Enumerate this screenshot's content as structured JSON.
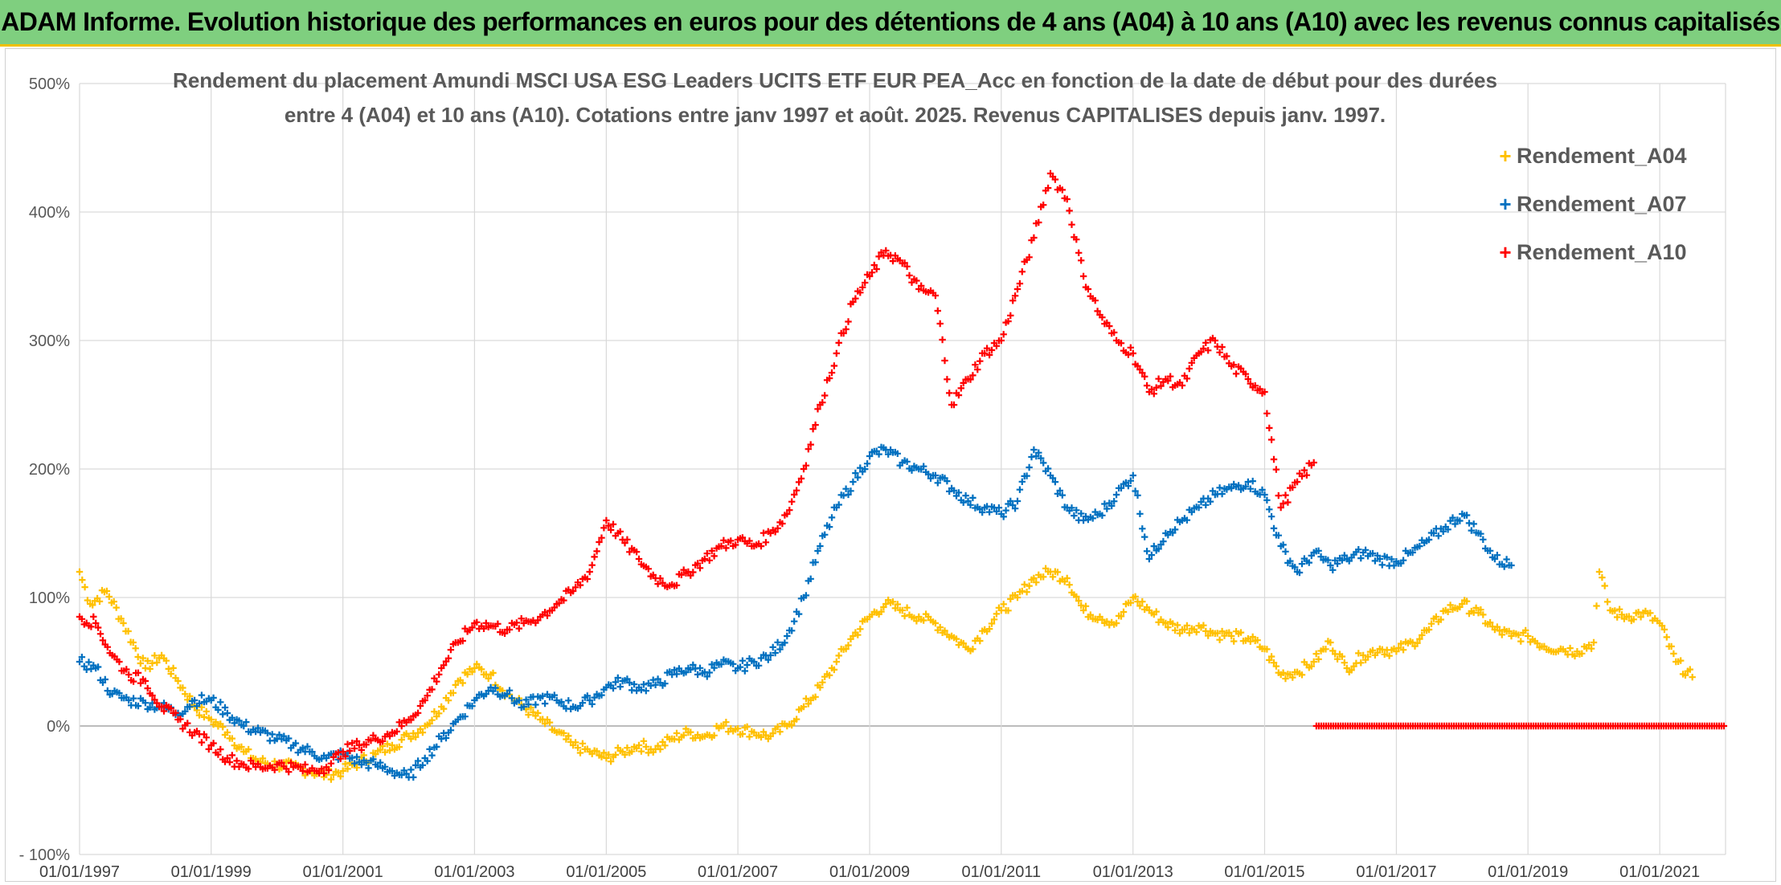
{
  "banner": {
    "title": "ADAM Informe. Evolution historique des performances en euros pour des détentions de 4 ans (A04) à 10 ans (A10) avec les revenus connus capitalisés"
  },
  "colors": {
    "banner_bg": "#7fcf7f",
    "banner_border": "#f0c000",
    "A04": "#ffc000",
    "A07": "#0070c0",
    "A10": "#ff0000",
    "grid": "#d9d9d9"
  },
  "chart_data": {
    "type": "scatter",
    "marker": "plus",
    "title_lines": [
      "Rendement du placement Amundi MSCI USA ESG Leaders UCITS ETF EUR PEA_Acc en fonction de la date de début pour des durées",
      "entre 4 (A04) et 10 ans (A10). Cotations entre janv 1997 et août. 2025. Revenus CAPITALISES depuis janv. 1997."
    ],
    "xlabel": "",
    "ylabel": "",
    "grid": true,
    "legend_position": "right",
    "x_ticks": [
      "01/01/1997",
      "01/01/1999",
      "01/01/2001",
      "01/01/2003",
      "01/01/2005",
      "01/01/2007",
      "01/01/2009",
      "01/01/2011",
      "01/01/2013",
      "01/01/2015",
      "01/01/2017",
      "01/01/2019",
      "01/01/2021"
    ],
    "xlim": [
      "1997-01-01",
      "2022-01-01"
    ],
    "y_ticks": [
      "- 100%",
      "0%",
      "100%",
      "200%",
      "300%",
      "400%",
      "500%"
    ],
    "ylim": [
      -100,
      500
    ],
    "y_unit": "%",
    "series": [
      {
        "name": "Rendement_A04",
        "color": "#ffc000",
        "points": [
          [
            "1997-01-01",
            120
          ],
          [
            "1997-03-01",
            95
          ],
          [
            "1997-06-01",
            105
          ],
          [
            "1997-09-01",
            80
          ],
          [
            "1998-01-01",
            45
          ],
          [
            "1998-04-01",
            55
          ],
          [
            "1998-07-01",
            35
          ],
          [
            "1998-10-01",
            15
          ],
          [
            "1999-01-01",
            5
          ],
          [
            "1999-04-01",
            -5
          ],
          [
            "1999-07-01",
            -20
          ],
          [
            "1999-10-01",
            -28
          ],
          [
            "2000-01-01",
            -30
          ],
          [
            "2000-04-01",
            -32
          ],
          [
            "2000-07-01",
            -35
          ],
          [
            "2000-10-01",
            -38
          ],
          [
            "2001-01-01",
            -35
          ],
          [
            "2001-04-01",
            -28
          ],
          [
            "2001-07-01",
            -22
          ],
          [
            "2001-10-01",
            -15
          ],
          [
            "2002-01-01",
            -8
          ],
          [
            "2002-04-01",
            0
          ],
          [
            "2002-07-01",
            15
          ],
          [
            "2002-10-01",
            35
          ],
          [
            "2003-01-01",
            45
          ],
          [
            "2003-04-01",
            40
          ],
          [
            "2003-07-01",
            25
          ],
          [
            "2003-10-01",
            15
          ],
          [
            "2004-01-01",
            5
          ],
          [
            "2004-04-01",
            -5
          ],
          [
            "2004-07-01",
            -15
          ],
          [
            "2004-10-01",
            -20
          ],
          [
            "2005-01-01",
            -25
          ],
          [
            "2005-04-01",
            -20
          ],
          [
            "2005-07-01",
            -15
          ],
          [
            "2005-10-01",
            -18
          ],
          [
            "2006-01-01",
            -10
          ],
          [
            "2006-04-01",
            -5
          ],
          [
            "2006-07-01",
            -8
          ],
          [
            "2006-10-01",
            0
          ],
          [
            "2007-01-01",
            -2
          ],
          [
            "2007-04-01",
            -5
          ],
          [
            "2007-07-01",
            -8
          ],
          [
            "2007-10-01",
            0
          ],
          [
            "2008-01-01",
            15
          ],
          [
            "2008-04-01",
            30
          ],
          [
            "2008-07-01",
            50
          ],
          [
            "2008-10-01",
            70
          ],
          [
            "2009-01-01",
            85
          ],
          [
            "2009-04-01",
            95
          ],
          [
            "2009-07-01",
            90
          ],
          [
            "2009-10-01",
            85
          ],
          [
            "2010-01-01",
            80
          ],
          [
            "2010-04-01",
            70
          ],
          [
            "2010-07-01",
            60
          ],
          [
            "2010-10-01",
            75
          ],
          [
            "2011-01-01",
            90
          ],
          [
            "2011-04-01",
            100
          ],
          [
            "2011-07-01",
            115
          ],
          [
            "2011-10-01",
            120
          ],
          [
            "2012-01-01",
            115
          ],
          [
            "2012-04-01",
            90
          ],
          [
            "2012-07-01",
            85
          ],
          [
            "2012-10-01",
            80
          ],
          [
            "2013-01-01",
            100
          ],
          [
            "2013-04-01",
            90
          ],
          [
            "2013-07-01",
            80
          ],
          [
            "2013-10-01",
            75
          ],
          [
            "2014-01-01",
            78
          ],
          [
            "2014-04-01",
            72
          ],
          [
            "2014-07-01",
            70
          ],
          [
            "2014-10-01",
            68
          ],
          [
            "2015-01-01",
            60
          ],
          [
            "2015-04-01",
            40
          ],
          [
            "2015-07-01",
            42
          ],
          [
            "2015-10-01",
            50
          ],
          [
            "2016-01-01",
            65
          ],
          [
            "2016-04-01",
            45
          ],
          [
            "2016-07-01",
            55
          ],
          [
            "2016-10-01",
            60
          ],
          [
            "2017-01-01",
            58
          ],
          [
            "2017-04-01",
            65
          ],
          [
            "2017-07-01",
            75
          ],
          [
            "2017-10-01",
            90
          ],
          [
            "2018-01-01",
            95
          ],
          [
            "2018-04-01",
            88
          ],
          [
            "2018-07-01",
            75
          ],
          [
            "2018-10-01",
            70
          ],
          [
            "2019-01-01",
            70
          ],
          [
            "2019-04-01",
            62
          ],
          [
            "2019-07-01",
            60
          ],
          [
            "2019-10-01",
            58
          ],
          [
            "2020-01-01",
            65
          ],
          [
            "2020-02-01",
            120
          ],
          [
            "2020-04-01",
            90
          ],
          [
            "2020-07-01",
            85
          ],
          [
            "2020-10-01",
            88
          ],
          [
            "2021-01-01",
            80
          ],
          [
            "2021-04-01",
            50
          ],
          [
            "2021-07-01",
            38
          ]
        ]
      },
      {
        "name": "Rendement_A07",
        "color": "#0070c0",
        "points": [
          [
            "1997-01-01",
            50
          ],
          [
            "1997-04-01",
            45
          ],
          [
            "1997-07-01",
            25
          ],
          [
            "1997-10-01",
            20
          ],
          [
            "1998-01-01",
            18
          ],
          [
            "1998-04-01",
            15
          ],
          [
            "1998-07-01",
            10
          ],
          [
            "1998-10-01",
            20
          ],
          [
            "1999-01-01",
            20
          ],
          [
            "1999-04-01",
            10
          ],
          [
            "1999-07-01",
            0
          ],
          [
            "1999-10-01",
            -5
          ],
          [
            "2000-01-01",
            -10
          ],
          [
            "2000-04-01",
            -15
          ],
          [
            "2000-07-01",
            -20
          ],
          [
            "2000-10-01",
            -25
          ],
          [
            "2001-01-01",
            -22
          ],
          [
            "2001-04-01",
            -28
          ],
          [
            "2001-07-01",
            -30
          ],
          [
            "2001-10-01",
            -35
          ],
          [
            "2002-01-01",
            -40
          ],
          [
            "2002-04-01",
            -25
          ],
          [
            "2002-07-01",
            -10
          ],
          [
            "2002-10-01",
            5
          ],
          [
            "2003-01-01",
            20
          ],
          [
            "2003-04-01",
            30
          ],
          [
            "2003-07-01",
            25
          ],
          [
            "2003-10-01",
            15
          ],
          [
            "2004-01-01",
            22
          ],
          [
            "2004-04-01",
            20
          ],
          [
            "2004-07-01",
            15
          ],
          [
            "2004-10-01",
            20
          ],
          [
            "2005-01-01",
            30
          ],
          [
            "2005-04-01",
            35
          ],
          [
            "2005-07-01",
            30
          ],
          [
            "2005-10-01",
            32
          ],
          [
            "2006-01-01",
            40
          ],
          [
            "2006-04-01",
            45
          ],
          [
            "2006-07-01",
            42
          ],
          [
            "2006-10-01",
            48
          ],
          [
            "2007-01-01",
            45
          ],
          [
            "2007-04-01",
            50
          ],
          [
            "2007-07-01",
            55
          ],
          [
            "2007-10-01",
            70
          ],
          [
            "2008-01-01",
            100
          ],
          [
            "2008-04-01",
            140
          ],
          [
            "2008-07-01",
            170
          ],
          [
            "2008-10-01",
            190
          ],
          [
            "2009-01-01",
            210
          ],
          [
            "2009-04-01",
            215
          ],
          [
            "2009-07-01",
            205
          ],
          [
            "2009-10-01",
            200
          ],
          [
            "2010-01-01",
            195
          ],
          [
            "2010-04-01",
            185
          ],
          [
            "2010-07-01",
            175
          ],
          [
            "2010-10-01",
            170
          ],
          [
            "2011-01-01",
            165
          ],
          [
            "2011-04-01",
            175
          ],
          [
            "2011-07-01",
            215
          ],
          [
            "2011-10-01",
            195
          ],
          [
            "2012-01-01",
            170
          ],
          [
            "2012-04-01",
            160
          ],
          [
            "2012-07-01",
            165
          ],
          [
            "2012-10-01",
            180
          ],
          [
            "2013-01-01",
            195
          ],
          [
            "2013-04-01",
            130
          ],
          [
            "2013-07-01",
            150
          ],
          [
            "2013-10-01",
            160
          ],
          [
            "2014-01-01",
            170
          ],
          [
            "2014-04-01",
            180
          ],
          [
            "2014-07-01",
            185
          ],
          [
            "2014-10-01",
            190
          ],
          [
            "2015-01-01",
            180
          ],
          [
            "2015-04-01",
            140
          ],
          [
            "2015-07-01",
            120
          ],
          [
            "2015-10-01",
            135
          ],
          [
            "2016-01-01",
            125
          ],
          [
            "2016-04-01",
            130
          ],
          [
            "2016-07-01",
            135
          ],
          [
            "2016-10-01",
            130
          ],
          [
            "2017-01-01",
            128
          ],
          [
            "2017-04-01",
            135
          ],
          [
            "2017-07-01",
            145
          ],
          [
            "2017-10-01",
            155
          ],
          [
            "2018-01-01",
            165
          ],
          [
            "2018-04-01",
            150
          ],
          [
            "2018-07-01",
            130
          ],
          [
            "2018-10-01",
            125
          ]
        ]
      },
      {
        "name": "Rendement_A10",
        "color": "#ff0000",
        "points": [
          [
            "1997-01-01",
            85
          ],
          [
            "1997-04-01",
            80
          ],
          [
            "1997-07-01",
            55
          ],
          [
            "1997-10-01",
            40
          ],
          [
            "1998-01-01",
            35
          ],
          [
            "1998-04-01",
            15
          ],
          [
            "1998-07-01",
            5
          ],
          [
            "1998-10-01",
            -5
          ],
          [
            "1999-01-01",
            -15
          ],
          [
            "1999-04-01",
            -25
          ],
          [
            "1999-07-01",
            -30
          ],
          [
            "1999-10-01",
            -32
          ],
          [
            "2000-01-01",
            -30
          ],
          [
            "2000-04-01",
            -32
          ],
          [
            "2000-07-01",
            -35
          ],
          [
            "2000-10-01",
            -32
          ],
          [
            "2001-01-01",
            -20
          ],
          [
            "2001-04-01",
            -15
          ],
          [
            "2001-07-01",
            -10
          ],
          [
            "2001-10-01",
            -5
          ],
          [
            "2002-01-01",
            5
          ],
          [
            "2002-04-01",
            20
          ],
          [
            "2002-07-01",
            45
          ],
          [
            "2002-10-01",
            65
          ],
          [
            "2003-01-01",
            80
          ],
          [
            "2003-04-01",
            78
          ],
          [
            "2003-07-01",
            75
          ],
          [
            "2003-10-01",
            80
          ],
          [
            "2004-01-01",
            85
          ],
          [
            "2004-04-01",
            95
          ],
          [
            "2004-07-01",
            105
          ],
          [
            "2004-10-01",
            120
          ],
          [
            "2005-01-01",
            160
          ],
          [
            "2005-04-01",
            145
          ],
          [
            "2005-07-01",
            130
          ],
          [
            "2005-10-01",
            115
          ],
          [
            "2006-01-01",
            110
          ],
          [
            "2006-04-01",
            120
          ],
          [
            "2006-07-01",
            130
          ],
          [
            "2006-10-01",
            140
          ],
          [
            "2007-01-01",
            145
          ],
          [
            "2007-04-01",
            140
          ],
          [
            "2007-07-01",
            150
          ],
          [
            "2007-10-01",
            165
          ],
          [
            "2008-01-01",
            200
          ],
          [
            "2008-04-01",
            250
          ],
          [
            "2008-07-01",
            290
          ],
          [
            "2008-10-01",
            330
          ],
          [
            "2009-01-01",
            350
          ],
          [
            "2009-04-01",
            370
          ],
          [
            "2009-07-01",
            360
          ],
          [
            "2009-10-01",
            340
          ],
          [
            "2010-01-01",
            335
          ],
          [
            "2010-04-01",
            250
          ],
          [
            "2010-07-01",
            270
          ],
          [
            "2010-10-01",
            290
          ],
          [
            "2011-01-01",
            300
          ],
          [
            "2011-04-01",
            340
          ],
          [
            "2011-07-01",
            380
          ],
          [
            "2011-10-01",
            430
          ],
          [
            "2012-01-01",
            410
          ],
          [
            "2012-04-01",
            350
          ],
          [
            "2012-07-01",
            320
          ],
          [
            "2012-10-01",
            300
          ],
          [
            "2013-01-01",
            290
          ],
          [
            "2013-04-01",
            260
          ],
          [
            "2013-07-01",
            270
          ],
          [
            "2013-10-01",
            265
          ],
          [
            "2014-01-01",
            290
          ],
          [
            "2014-04-01",
            300
          ],
          [
            "2014-07-01",
            280
          ],
          [
            "2014-10-01",
            270
          ],
          [
            "2015-01-01",
            260
          ],
          [
            "2015-04-01",
            170
          ],
          [
            "2015-07-01",
            190
          ],
          [
            "2015-10-01",
            205
          ]
        ]
      }
    ],
    "zero_segment": {
      "series": "Rendement_A10",
      "start": "2015-10-15",
      "end": "2022-01-01",
      "value": 0
    }
  }
}
